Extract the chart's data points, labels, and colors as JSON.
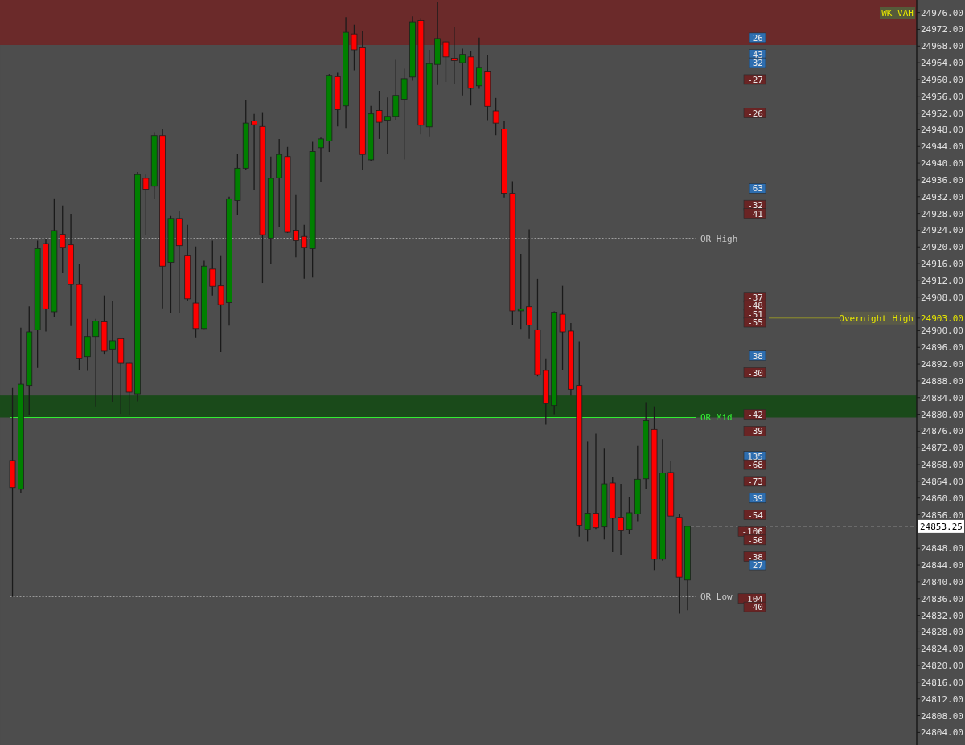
{
  "chart_data": {
    "type": "candlestick",
    "categories": [
      null,
      null,
      null,
      null,
      null,
      null,
      null,
      null,
      null,
      null,
      null,
      null,
      null,
      null,
      null,
      null,
      null,
      null,
      null,
      null,
      null,
      null,
      null,
      null,
      null,
      null,
      null,
      null,
      null,
      null,
      null,
      null,
      null,
      null,
      null,
      null,
      null,
      null,
      null,
      null,
      null,
      null,
      null,
      null,
      null,
      null,
      null,
      null,
      null,
      null,
      null,
      null,
      null,
      null,
      null,
      null,
      null,
      null,
      null,
      null,
      null,
      null,
      null,
      null,
      null,
      null,
      null,
      null,
      null,
      null,
      null,
      null,
      null,
      null,
      null,
      null,
      null,
      null,
      null,
      null,
      null,
      null,
      null,
      null,
      null,
      null,
      null,
      null,
      null,
      null,
      null,
      null,
      null,
      null,
      null,
      null,
      null,
      null,
      null,
      null,
      null,
      null,
      null,
      null,
      null,
      null,
      null,
      null,
      null,
      null
    ],
    "ohlc": [
      null,
      [
        24869.0,
        24886.3,
        24836.4,
        24862.5
      ],
      [
        24862.1,
        24900.7,
        24861.3,
        24887.2
      ],
      [
        24886.9,
        24905.8,
        24879.9,
        24899.7
      ],
      [
        24900.2,
        24921.5,
        24891.1,
        24919.6
      ],
      [
        24920.8,
        24921.8,
        24899.8,
        24905.2
      ],
      [
        24904.5,
        24931.6,
        24903.2,
        24923.9
      ],
      [
        24923.0,
        24929.9,
        24913.7,
        24919.9
      ],
      [
        24920.5,
        24927.9,
        24901.1,
        24911.0
      ],
      [
        24911.0,
        24915.9,
        24890.6,
        24893.3
      ],
      [
        24893.8,
        24902.8,
        24890.4,
        24898.6
      ],
      [
        24898.6,
        24902.8,
        24881.9,
        24902.3
      ],
      [
        24902.1,
        24908.4,
        24894.3,
        24895.1
      ],
      [
        24895.6,
        24907.1,
        24883.0,
        24897.6
      ],
      [
        24898.1,
        24898.2,
        24880.1,
        24892.2
      ],
      [
        24892.2,
        24892.3,
        24879.9,
        24885.3
      ],
      [
        24884.9,
        24937.9,
        24883.1,
        24937.3
      ],
      [
        24936.4,
        24937.3,
        24922.9,
        24933.8
      ],
      [
        24934.5,
        24947.4,
        24931.4,
        24946.6
      ],
      [
        24946.6,
        24948.2,
        24905.3,
        24915.4
      ],
      [
        24916.3,
        24927.4,
        24904.2,
        24926.8
      ],
      [
        24926.8,
        24928.5,
        24904.2,
        24920.3
      ],
      [
        24918.0,
        24925.3,
        24907.0,
        24907.6
      ],
      [
        24906.6,
        24920.1,
        24898.4,
        24900.5
      ],
      [
        24900.5,
        24916.7,
        24900.4,
        24915.4
      ],
      [
        24914.7,
        24921.5,
        24908.4,
        24910.6
      ],
      [
        24910.7,
        24918.0,
        24894.9,
        24906.2
      ],
      [
        24906.7,
        24932.0,
        24901.2,
        24931.5
      ],
      [
        24931.1,
        24942.3,
        24927.6,
        24938.8
      ],
      [
        24938.8,
        24955.1,
        24938.4,
        24949.6
      ],
      [
        24950.1,
        24951.8,
        24933.5,
        24949.2
      ],
      [
        24948.8,
        24952.2,
        24911.4,
        24922.9
      ],
      [
        24922.1,
        24941.6,
        24916.0,
        24936.4
      ],
      [
        24936.5,
        24945.8,
        24924.7,
        24942.1
      ],
      [
        24941.6,
        24943.9,
        24923.3,
        24923.5
      ],
      [
        24924.0,
        24932.4,
        24917.5,
        24921.5
      ],
      [
        24922.5,
        24925.3,
        24912.4,
        24919.9
      ],
      [
        24919.6,
        24945.1,
        24912.7,
        24942.8
      ],
      [
        24943.7,
        24946.1,
        24935.4,
        24945.8
      ],
      [
        24945.3,
        24961.3,
        24942.7,
        24961.0
      ],
      [
        24960.7,
        24961.6,
        24948.8,
        24952.8
      ],
      [
        24953.7,
        24974.9,
        24948.4,
        24971.3
      ],
      [
        24970.9,
        24973.1,
        24962.2,
        24967.1
      ],
      [
        24967.6,
        24971.5,
        24938.4,
        24942.1
      ],
      [
        24940.8,
        24953.7,
        24940.6,
        24951.8
      ],
      [
        24952.6,
        24957.3,
        24945.8,
        24949.8
      ],
      [
        24950.3,
        24955.7,
        24942.3,
        24951.2
      ],
      [
        24951.2,
        24964.7,
        24950.4,
        24956.2
      ],
      [
        24955.3,
        24962.6,
        24940.9,
        24960.2
      ],
      [
        24960.6,
        24975.1,
        24959.7,
        24973.8
      ],
      [
        24974.1,
        24974.5,
        24946.9,
        24949.1
      ],
      [
        24948.7,
        24967.1,
        24946.4,
        24963.8
      ],
      [
        24963.6,
        24978.5,
        24958.7,
        24969.8
      ],
      [
        24969.0,
        24969.1,
        24959.4,
        24965.4
      ],
      [
        24965.1,
        24972.5,
        24958.9,
        24964.5
      ],
      [
        24964.0,
        24967.4,
        24956.2,
        24966.0
      ],
      [
        24965.4,
        24966.8,
        24953.8,
        24957.9
      ],
      [
        24958.5,
        24970.0,
        24957.8,
        24962.9
      ],
      [
        24962.0,
        24965.9,
        24950.3,
        24953.6
      ],
      [
        24952.5,
        24955.6,
        24946.7,
        24949.6
      ],
      [
        24948.2,
        24950.1,
        24931.8,
        24932.8
      ],
      [
        24932.8,
        24935.7,
        24901.3,
        24904.7
      ],
      [
        24904.7,
        24918.3,
        24900.4,
        24905.2
      ],
      [
        24905.7,
        24924.2,
        24898.0,
        24901.3
      ],
      [
        24900.2,
        24912.4,
        24889.1,
        24889.5
      ],
      [
        24890.5,
        24893.2,
        24877.5,
        24882.6
      ],
      [
        24882.1,
        24904.6,
        24880.0,
        24904.4
      ],
      [
        24903.9,
        24910.7,
        24890.6,
        24899.7
      ],
      [
        24899.9,
        24901.8,
        24884.5,
        24886.0
      ],
      [
        24886.9,
        24897.5,
        24850.8,
        24853.5
      ],
      [
        24852.5,
        24873.5,
        24849.7,
        24856.4
      ],
      [
        24856.4,
        24875.4,
        24852.6,
        24852.9
      ],
      [
        24853.1,
        24871.8,
        24850.1,
        24863.4
      ],
      [
        24863.6,
        24865.1,
        24847.1,
        24855.2
      ],
      [
        24855.4,
        24863.4,
        24846.3,
        24852.2
      ],
      [
        24852.5,
        24860.2,
        24851.4,
        24856.5
      ],
      [
        24856.2,
        24872.5,
        24854.5,
        24864.5
      ],
      [
        24864.6,
        24882.9,
        24862.1,
        24878.5
      ],
      [
        24876.4,
        24881.9,
        24842.8,
        24845.4
      ],
      [
        24845.4,
        24874.1,
        24845.0,
        24866.0
      ],
      [
        24866.1,
        24868.9,
        24855.7,
        24855.7
      ],
      [
        24855.4,
        24856.2,
        24832.4,
        24841.1
      ],
      [
        24840.4,
        24853.25,
        24833.2,
        24853.25
      ],
      null,
      null,
      null,
      null,
      null,
      null,
      null,
      null,
      null,
      null,
      null,
      null,
      null,
      null,
      null,
      null,
      null,
      null,
      null,
      null,
      null,
      null,
      null,
      null,
      null,
      null,
      null
    ],
    "ylim": [
      24801,
      24979
    ],
    "yticks": [
      {
        "value": 24804,
        "label": "24804.00"
      },
      {
        "value": 24808,
        "label": "24808.00"
      },
      {
        "value": 24812,
        "label": "24812.00"
      },
      {
        "value": 24816,
        "label": "24816.00"
      },
      {
        "value": 24820,
        "label": "24820.00"
      },
      {
        "value": 24824,
        "label": "24824.00"
      },
      {
        "value": 24828,
        "label": "24828.00"
      },
      {
        "value": 24832,
        "label": "24832.00"
      },
      {
        "value": 24836,
        "label": "24836.00"
      },
      {
        "value": 24840,
        "label": "24840.00"
      },
      {
        "value": 24844,
        "label": "24844.00"
      },
      {
        "value": 24848,
        "label": "24848.00"
      },
      {
        "value": 24856,
        "label": "24856.00"
      },
      {
        "value": 24860,
        "label": "24860.00"
      },
      {
        "value": 24864,
        "label": "24864.00"
      },
      {
        "value": 24868,
        "label": "24868.00"
      },
      {
        "value": 24872,
        "label": "24872.00"
      },
      {
        "value": 24876,
        "label": "24876.00"
      },
      {
        "value": 24880,
        "label": "24880.00"
      },
      {
        "value": 24884,
        "label": "24884.00"
      },
      {
        "value": 24888,
        "label": "24888.00"
      },
      {
        "value": 24892,
        "label": "24892.00"
      },
      {
        "value": 24896,
        "label": "24896.00"
      },
      {
        "value": 24900,
        "label": "24900.00"
      },
      {
        "value": 24903,
        "label": "24903.00"
      },
      {
        "value": 24908,
        "label": "24908.00"
      },
      {
        "value": 24912,
        "label": "24912.00"
      },
      {
        "value": 24916,
        "label": "24916.00"
      },
      {
        "value": 24920,
        "label": "24920.00"
      },
      {
        "value": 24924,
        "label": "24924.00"
      },
      {
        "value": 24928,
        "label": "24928.00"
      },
      {
        "value": 24932,
        "label": "24932.00"
      },
      {
        "value": 24936,
        "label": "24936.00"
      },
      {
        "value": 24940,
        "label": "24940.00"
      },
      {
        "value": 24944,
        "label": "24944.00"
      },
      {
        "value": 24948,
        "label": "24948.00"
      },
      {
        "value": 24952,
        "label": "24952.00"
      },
      {
        "value": 24956,
        "label": "24956.00"
      },
      {
        "value": 24960,
        "label": "24960.00"
      },
      {
        "value": 24964,
        "label": "24964.00"
      },
      {
        "value": 24968,
        "label": "24968.00"
      },
      {
        "value": 24972,
        "label": "24972.00"
      },
      {
        "value": 24976,
        "label": "24976.00"
      }
    ],
    "tick_labels": "y",
    "grid": false,
    "bands": [
      {
        "axis": "y",
        "from": 24968.25,
        "to": 24979,
        "label": "WK-VAH",
        "color": "#6b2a2a"
      },
      {
        "axis": "y",
        "from": 24879.25,
        "to": 24884.5,
        "color": "#1a4a1a"
      }
    ],
    "ref_lines": [
      {
        "axis": "y",
        "value": 24922,
        "label": "OR High",
        "color": "#c8c8c8",
        "line_style": "dotted"
      },
      {
        "axis": "y",
        "value": 24879.25,
        "label": "OR Mid",
        "color": "#33ee33",
        "line_style": "solid"
      },
      {
        "axis": "y",
        "value": 24836.5,
        "label": "OR Low",
        "color": "#c8c8c8",
        "line_style": "dotted"
      },
      {
        "axis": "y",
        "value": 24903,
        "label": "Overnight High",
        "color": "#e6e600"
      },
      {
        "axis": "y",
        "value": 24853.25,
        "label": "24853.25",
        "color": "#9a9a9a",
        "line_style": "dashed"
      }
    ],
    "annotations": [
      {
        "text": "26",
        "y": 24970
      },
      {
        "text": "43",
        "y": 24966
      },
      {
        "text": "32",
        "y": 24964
      },
      {
        "text": "-27",
        "y": 24960
      },
      {
        "text": "-26",
        "y": 24952
      },
      {
        "text": "63",
        "y": 24934
      },
      {
        "text": "-32",
        "y": 24930
      },
      {
        "text": "-41",
        "y": 24928
      },
      {
        "text": "-37",
        "y": 24908
      },
      {
        "text": "-48",
        "y": 24906
      },
      {
        "text": "-51",
        "y": 24904
      },
      {
        "text": "-55",
        "y": 24902
      },
      {
        "text": "38",
        "y": 24894
      },
      {
        "text": "-30",
        "y": 24890
      },
      {
        "text": "-42",
        "y": 24880
      },
      {
        "text": "-39",
        "y": 24876
      },
      {
        "text": "135",
        "y": 24870
      },
      {
        "text": "-68",
        "y": 24868
      },
      {
        "text": "-73",
        "y": 24864
      },
      {
        "text": "39",
        "y": 24860
      },
      {
        "text": "-54",
        "y": 24856
      },
      {
        "text": "-106",
        "y": 24852
      },
      {
        "text": "-56",
        "y": 24850
      },
      {
        "text": "-38",
        "y": 24846
      },
      {
        "text": "27",
        "y": 24844
      },
      {
        "text": "-104",
        "y": 24836
      },
      {
        "text": "-40",
        "y": 24834
      }
    ]
  }
}
